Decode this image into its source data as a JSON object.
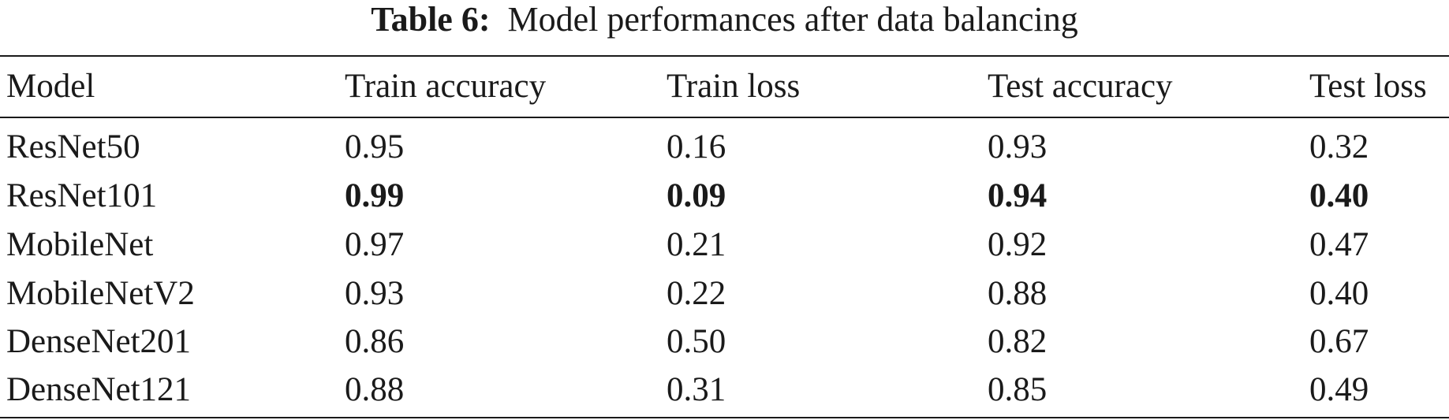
{
  "caption": {
    "label": "Table 6:",
    "text": "Model performances after data balancing"
  },
  "table": {
    "headers": [
      "Model",
      "Train accuracy",
      "Train loss",
      "Test accuracy",
      "Test loss"
    ],
    "rows": [
      [
        "ResNet50",
        "0.95",
        "0.16",
        "0.93",
        "0.32"
      ],
      [
        "ResNet101",
        "0.99",
        "0.09",
        "0.94",
        "0.40"
      ],
      [
        "MobileNet",
        "0.97",
        "0.21",
        "0.92",
        "0.47"
      ],
      [
        "MobileNetV2",
        "0.93",
        "0.22",
        "0.88",
        "0.40"
      ],
      [
        "DenseNet201",
        "0.86",
        "0.50",
        "0.82",
        "0.67"
      ],
      [
        "DenseNet121",
        "0.88",
        "0.31",
        "0.85",
        "0.49"
      ]
    ],
    "bold_row": "ResNet101"
  }
}
